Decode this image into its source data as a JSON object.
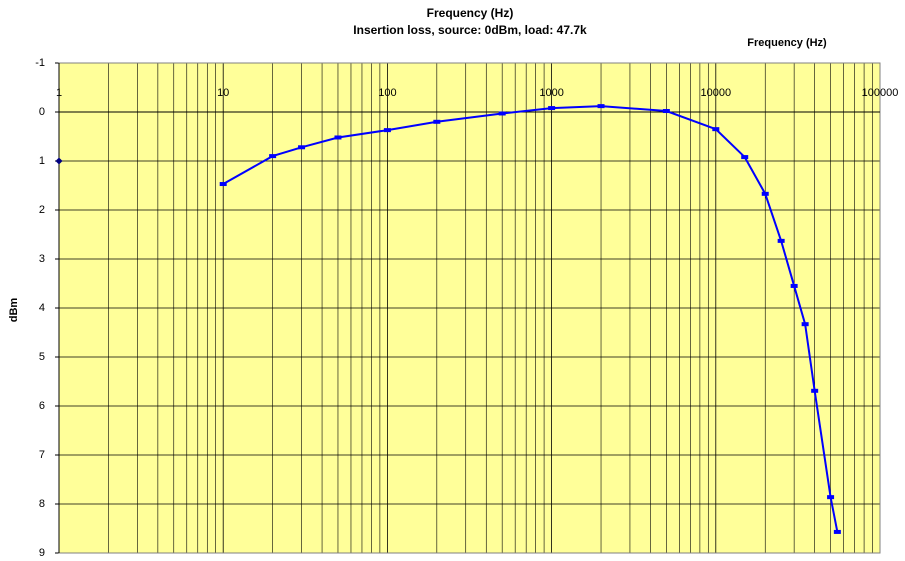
{
  "chart_data": {
    "type": "line",
    "title": "Frequency (Hz)",
    "subtitle": "Insertion loss, source: 0dBm, load: 47.7k",
    "x_label": "Frequency (Hz)",
    "y_label": "dBm",
    "x_log": true,
    "y_inverted": true,
    "grid": true,
    "minor_grid": true,
    "background": "#ffff99",
    "xlim": [
      1,
      100000
    ],
    "xticks": [
      1,
      10,
      100,
      1000,
      10000,
      100000
    ],
    "ylim": [
      -1,
      9
    ],
    "yticks": [
      -1,
      0,
      1,
      2,
      3,
      4,
      5,
      6,
      7,
      8,
      9
    ],
    "series": [
      {
        "color": "#0000ff",
        "x": [
          10,
          20,
          30,
          50,
          100,
          200,
          500,
          1000,
          2000,
          5000,
          10000,
          15000,
          20000,
          25000,
          30000,
          35000,
          40000,
          50000,
          55000
        ],
        "values": [
          1.47,
          0.9,
          0.72,
          0.52,
          0.37,
          0.2,
          0.03,
          -0.08,
          -0.12,
          -0.02,
          0.35,
          0.92,
          1.67,
          2.63,
          3.55,
          4.33,
          5.69,
          7.86,
          8.57
        ]
      },
      {
        "color": "#000080",
        "marker": "diamond",
        "x": [
          1
        ],
        "values": [
          1
        ]
      }
    ]
  }
}
